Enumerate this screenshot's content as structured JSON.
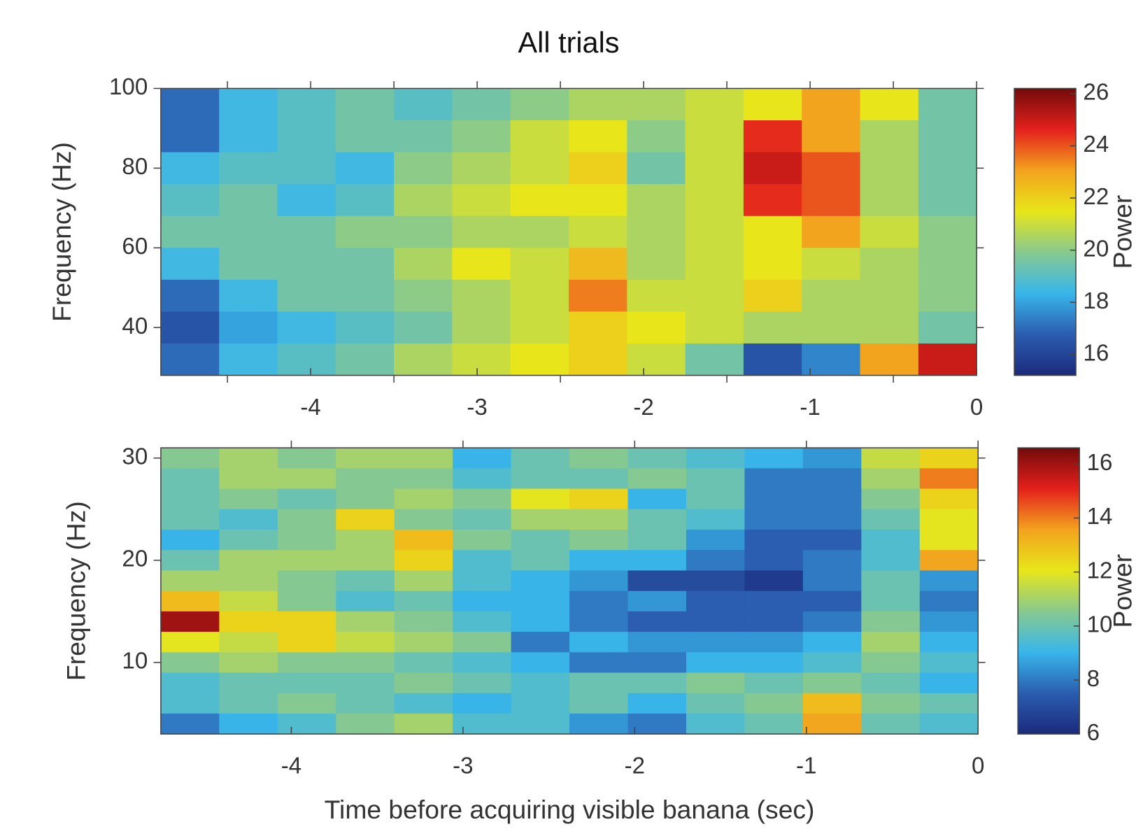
{
  "chart_data": [
    {
      "type": "heatmap",
      "title": "All trials",
      "ylabel": "Frequency (Hz)",
      "colorbar_label": "Power",
      "colormap": [
        "#1b2a7c",
        "#2b5db0",
        "#38b6ea",
        "#88c98f",
        "#e8e61a",
        "#f3a21e",
        "#e4201c",
        "#720b0b"
      ],
      "xlim": [
        -4.9,
        0
      ],
      "xticks": [
        -4,
        -3,
        -2,
        -1,
        0
      ],
      "xminorticks": [
        -4.5,
        -3.5,
        -2.5,
        -1.5,
        -0.5
      ],
      "ylim": [
        28,
        100
      ],
      "yticks": [
        40,
        60,
        80,
        100
      ],
      "clim": [
        15.2,
        26.2
      ],
      "cticks": [
        16,
        18,
        20,
        22,
        24,
        26
      ],
      "x": [
        -4.725,
        -4.375,
        -4.025,
        -3.675,
        -3.325,
        -2.975,
        -2.625,
        -2.275,
        -1.925,
        -1.575,
        -1.225,
        -0.875,
        -0.525,
        -0.175
      ],
      "y": [
        96,
        88,
        80,
        72,
        64,
        56,
        48,
        40,
        32
      ],
      "values": [
        [
          17,
          18.5,
          19,
          19.5,
          19,
          19.5,
          20,
          20.5,
          20.5,
          21,
          21.5,
          23,
          21.5,
          19.5
        ],
        [
          17,
          18.5,
          19,
          19.5,
          19.5,
          20,
          21,
          21.5,
          20,
          21,
          24.5,
          23,
          20.5,
          19.5
        ],
        [
          18.5,
          19,
          19,
          18.5,
          20,
          20.5,
          21,
          22,
          19.5,
          21,
          25,
          24,
          20.5,
          19.5
        ],
        [
          19,
          19.5,
          18.5,
          19,
          20.5,
          21,
          21.5,
          21.5,
          20.5,
          21,
          24.5,
          24,
          20.5,
          19.5
        ],
        [
          19.5,
          19.5,
          19.5,
          20,
          20,
          20.5,
          20.5,
          21,
          20.5,
          21,
          21.5,
          23,
          21,
          20
        ],
        [
          18.5,
          19.5,
          19.5,
          19.5,
          20.5,
          21.5,
          21,
          22.5,
          20.5,
          21,
          21.5,
          21,
          20.5,
          20
        ],
        [
          17,
          18.5,
          19.5,
          19.5,
          20,
          20.5,
          21,
          23.5,
          21,
          21,
          22,
          20.5,
          20.5,
          20
        ],
        [
          16.5,
          18,
          18.5,
          19,
          19.5,
          20.5,
          21,
          22,
          21.5,
          21,
          20.5,
          20.5,
          20.5,
          19.5
        ],
        [
          17,
          18.5,
          19,
          19.5,
          20.5,
          21,
          21.5,
          22,
          21,
          19.5,
          16.5,
          17.5,
          23,
          25
        ]
      ]
    },
    {
      "type": "heatmap",
      "ylabel": "Frequency (Hz)",
      "xlabel": "Time before acquiring visible banana (sec)",
      "colorbar_label": "Power",
      "colormap": [
        "#1b2a7c",
        "#2b5db0",
        "#38b6ea",
        "#88c98f",
        "#e8e61a",
        "#f3a21e",
        "#e4201c",
        "#720b0b"
      ],
      "xlim": [
        -4.76,
        0
      ],
      "xticks": [
        -4,
        -3,
        -2,
        -1,
        0
      ],
      "ylim": [
        3,
        31
      ],
      "yticks": [
        10,
        20,
        30
      ],
      "clim": [
        6,
        16.6
      ],
      "cticks": [
        6,
        8,
        10,
        12,
        14,
        16
      ],
      "x": [
        -4.59,
        -4.25,
        -3.91,
        -3.57,
        -3.23,
        -2.89,
        -2.55,
        -2.21,
        -1.87,
        -1.53,
        -1.19,
        -0.85,
        -0.51,
        -0.17
      ],
      "y": [
        30,
        28,
        26,
        24,
        22,
        20,
        18,
        16,
        14,
        12,
        10,
        8,
        6,
        4
      ],
      "values": [
        [
          10.5,
          11,
          10.5,
          11,
          11,
          9,
          10,
          10.5,
          10,
          9.5,
          9,
          8.5,
          11.5,
          12.5
        ],
        [
          10,
          11,
          11,
          10.5,
          10.5,
          9.5,
          10,
          10,
          10.5,
          10,
          8,
          8,
          11,
          14
        ],
        [
          10,
          10.5,
          10,
          10.5,
          11,
          10.5,
          12,
          12.5,
          9,
          10,
          8,
          8,
          10.5,
          12.5
        ],
        [
          10,
          9.5,
          10.5,
          12.5,
          10.5,
          10,
          11,
          11,
          10,
          9.5,
          8,
          8,
          10,
          12
        ],
        [
          9,
          10,
          10.5,
          11,
          13,
          10.5,
          10,
          10.5,
          10,
          8.5,
          7.5,
          7.5,
          9.5,
          12
        ],
        [
          10,
          11,
          11,
          11,
          12.5,
          9.5,
          10,
          9,
          9,
          8,
          7.5,
          8,
          9.5,
          13.5
        ],
        [
          11,
          11,
          10.5,
          10,
          11,
          9.5,
          9,
          8.5,
          7,
          7,
          6.5,
          8,
          10,
          8.5
        ],
        [
          13,
          11.5,
          10.5,
          9.5,
          10,
          9,
          9,
          8,
          8.5,
          7.5,
          7.5,
          7.5,
          10,
          8
        ],
        [
          16,
          12.5,
          12.5,
          11,
          10.5,
          9.5,
          9,
          8,
          7.5,
          7.5,
          7.5,
          8,
          10.5,
          8.5
        ],
        [
          12,
          11.5,
          12.5,
          11.5,
          11,
          10.5,
          8,
          9,
          8.5,
          8.5,
          8.5,
          9,
          11,
          9
        ],
        [
          10.5,
          11,
          10.5,
          10.5,
          10,
          9.5,
          9,
          8,
          8,
          9,
          9,
          9.5,
          10.5,
          9.5
        ],
        [
          9.5,
          10,
          10,
          10,
          10.5,
          10,
          9.5,
          10,
          10,
          10.5,
          10,
          10.5,
          10,
          9
        ],
        [
          9.5,
          10,
          10.5,
          10,
          9.5,
          9,
          9.5,
          10,
          9,
          10,
          10.5,
          13,
          10.5,
          10
        ],
        [
          8,
          9,
          9.5,
          10.5,
          11,
          9.5,
          9.5,
          8.5,
          8,
          9.5,
          10,
          13.5,
          10,
          9.5
        ]
      ]
    }
  ]
}
